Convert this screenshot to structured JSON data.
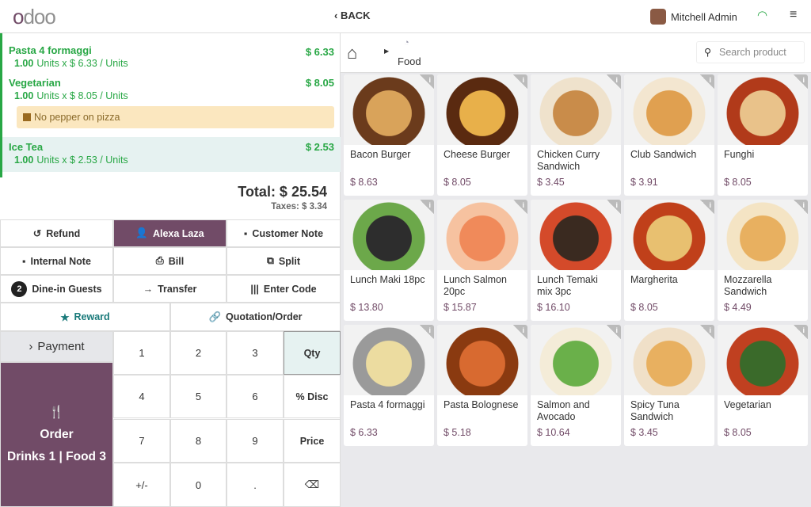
{
  "header": {
    "logo": "odoo",
    "back": "BACK",
    "user": "Mitchell Admin"
  },
  "order": {
    "lines": [
      {
        "name": "Pasta 4 formaggi",
        "price": "$ 6.33",
        "qty": "1.00",
        "detail": "Units x $ 6.33 / Units"
      },
      {
        "name": "Vegetarian",
        "price": "$ 8.05",
        "qty": "1.00",
        "detail": "Units x $ 8.05 / Units",
        "note": "No pepper on pizza"
      },
      {
        "name": "Ice Tea",
        "price": "$ 2.53",
        "qty": "1.00",
        "detail": "Units x $ 2.53 / Units"
      }
    ],
    "total": "Total: $ 25.54",
    "taxes": "Taxes: $ 3.34"
  },
  "actions": {
    "refund": "Refund",
    "customer": "Alexa Laza",
    "customer_note": "Customer Note",
    "internal_note": "Internal Note",
    "bill": "Bill",
    "split": "Split",
    "guests_count": "2",
    "guests": "Dine-in Guests",
    "transfer": "Transfer",
    "enter_code": "Enter Code",
    "reward": "Reward",
    "quotation": "Quotation/Order"
  },
  "numpad": {
    "payment": "Payment",
    "order": "Order",
    "order_detail": "Drinks 1 | Food 3",
    "keys": [
      "1",
      "2",
      "3",
      "Qty",
      "4",
      "5",
      "6",
      "% Disc",
      "7",
      "8",
      "9",
      "Price",
      "+/-",
      "0",
      ".",
      "⌫"
    ]
  },
  "breadcrumb": {
    "category": "Food",
    "search_placeholder": "Search product"
  },
  "colors": {
    "brand": "#714b67",
    "line": "#28a745"
  },
  "products": [
    {
      "name": "Bacon Burger",
      "price": "$ 8.63"
    },
    {
      "name": "Cheese Burger",
      "price": "$ 8.05"
    },
    {
      "name": "Chicken Curry Sandwich",
      "price": "$ 3.45"
    },
    {
      "name": "Club Sandwich",
      "price": "$ 3.91"
    },
    {
      "name": "Funghi",
      "price": "$ 8.05"
    },
    {
      "name": "Lunch Maki 18pc",
      "price": "$ 13.80"
    },
    {
      "name": "Lunch Salmon 20pc",
      "price": "$ 15.87"
    },
    {
      "name": "Lunch Temaki mix 3pc",
      "price": "$ 16.10"
    },
    {
      "name": "Margherita",
      "price": "$ 8.05"
    },
    {
      "name": "Mozzarella Sandwich",
      "price": "$ 4.49"
    },
    {
      "name": "Pasta 4 formaggi",
      "price": "$ 6.33"
    },
    {
      "name": "Pasta Bolognese",
      "price": "$ 5.18"
    },
    {
      "name": "Salmon and Avocado",
      "price": "$ 10.64"
    },
    {
      "name": "Spicy Tuna Sandwich",
      "price": "$ 3.45"
    },
    {
      "name": "Vegetarian",
      "price": "$ 8.05"
    }
  ]
}
